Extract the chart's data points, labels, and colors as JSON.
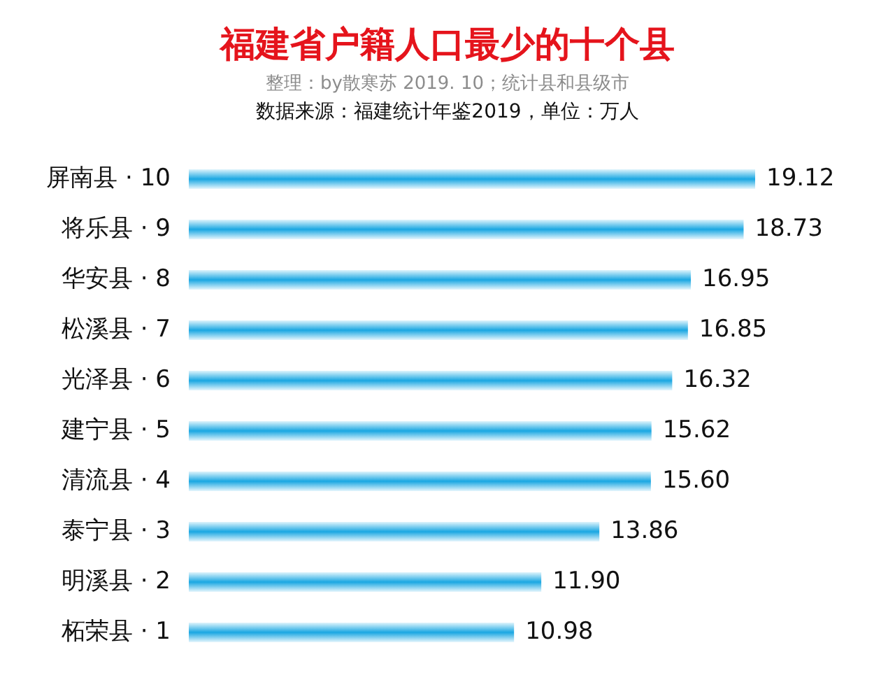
{
  "chart_data": {
    "type": "bar",
    "orientation": "horizontal",
    "title": "福建省户籍人口最少的十个县",
    "subtitle": "整理：by散寒苏  2019. 10；统计县和县级市",
    "annotations": [
      "数据来源：福建统计年鉴2019，单位：万人"
    ],
    "categories": [
      "屏南县 · 10",
      "将乐县 · 9",
      "华安县 · 8",
      "松溪县 · 7",
      "光泽县 · 6",
      "建宁县 · 5",
      "清流县 · 4",
      "泰宁县 · 3",
      "明溪县 · 2",
      "柘荣县 · 1"
    ],
    "values": [
      19.12,
      18.73,
      16.95,
      16.85,
      16.32,
      15.62,
      15.6,
      13.86,
      11.9,
      10.98
    ],
    "value_labels": [
      "19.12",
      "18.73",
      "16.95",
      "16.85",
      "16.32",
      "15.62",
      "15.60",
      "13.86",
      "11.90",
      "10.98"
    ],
    "color": "#1aa7e2"
  }
}
